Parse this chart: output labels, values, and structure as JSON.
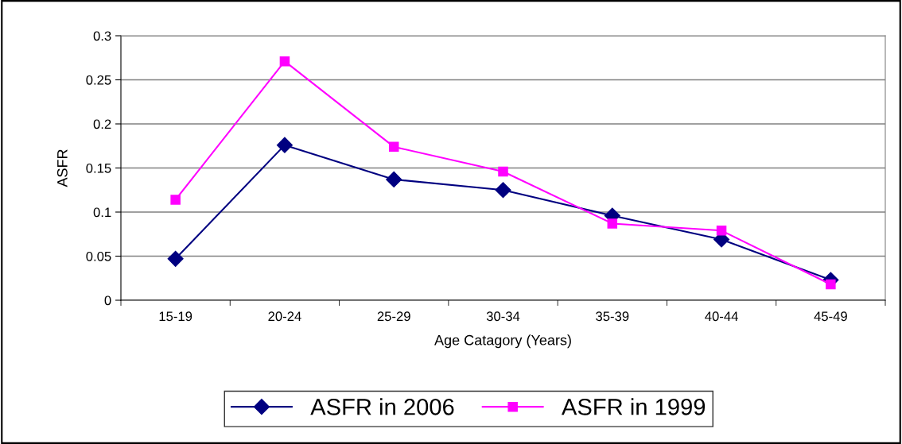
{
  "chart_data": {
    "type": "line",
    "xlabel": "Age Catagory (Years)",
    "ylabel": "ASFR",
    "categories": [
      "15-19",
      "20-24",
      "25-29",
      "30-34",
      "35-39",
      "40-44",
      "45-49"
    ],
    "series": [
      {
        "name": "ASFR in 2006",
        "color": "#000080",
        "marker": "diamond",
        "values": [
          0.047,
          0.176,
          0.137,
          0.125,
          0.096,
          0.069,
          0.023
        ]
      },
      {
        "name": "ASFR in 1999",
        "color": "#ff00ff",
        "marker": "square",
        "values": [
          0.114,
          0.271,
          0.174,
          0.146,
          0.087,
          0.079,
          0.018
        ]
      }
    ],
    "ylim": [
      0,
      0.3
    ],
    "yticks": [
      0,
      0.05,
      0.1,
      0.15,
      0.2,
      0.25,
      0.3
    ],
    "grid": "y",
    "legend": "bottom",
    "line_style": "solid"
  }
}
